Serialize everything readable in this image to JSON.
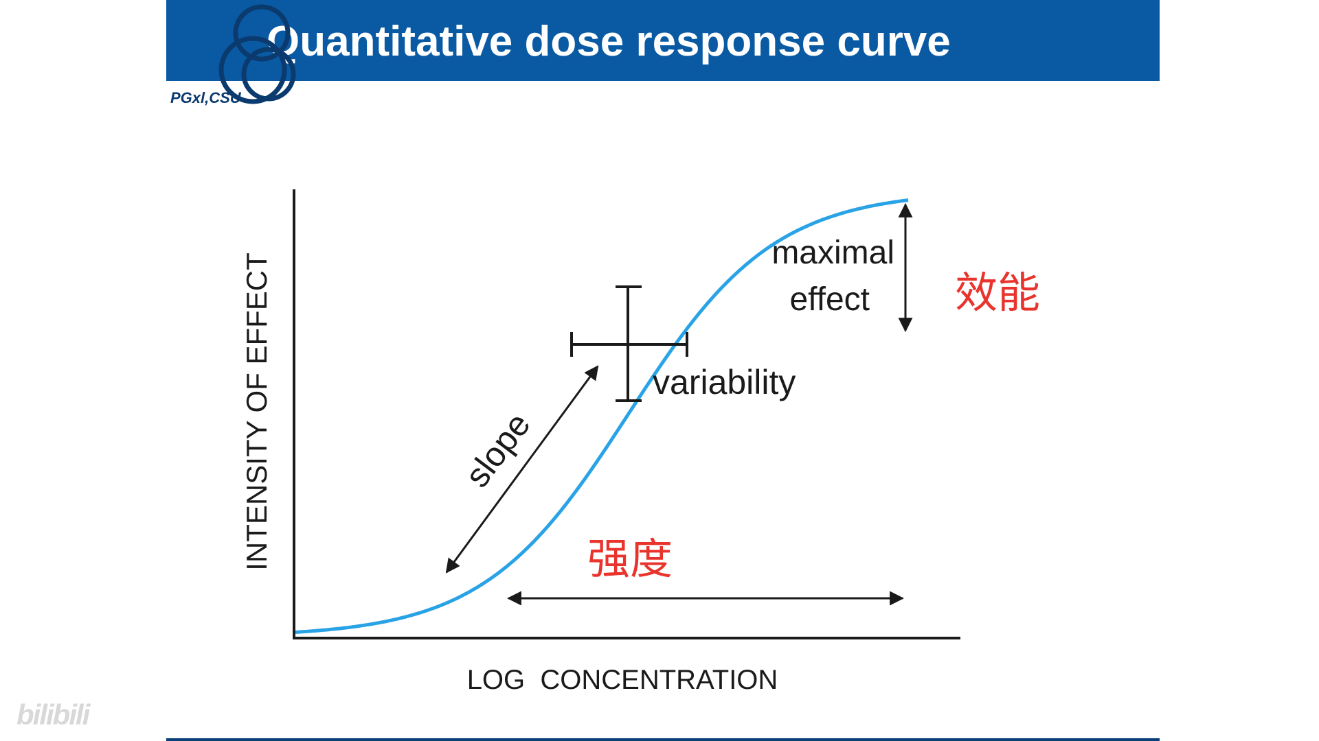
{
  "slide": {
    "title": "Quantitative dose response curve",
    "logo_text": "PGxl,CSU"
  },
  "diagram": {
    "y_axis_label": "INTENSITY OF EFFECT",
    "x_axis_label": "LOG  CONCENTRATION",
    "annotations": {
      "maximal_line1": "maximal",
      "maximal_line2": "effect",
      "variability": "variability",
      "slope": "slope",
      "efficacy_cn": "效能",
      "potency_cn": "强度"
    },
    "colors": {
      "curve": "#29a3e6",
      "annotation_cn": "#e8342c",
      "title_bar": "#0a5aa3"
    }
  },
  "watermark": "bilibili"
}
